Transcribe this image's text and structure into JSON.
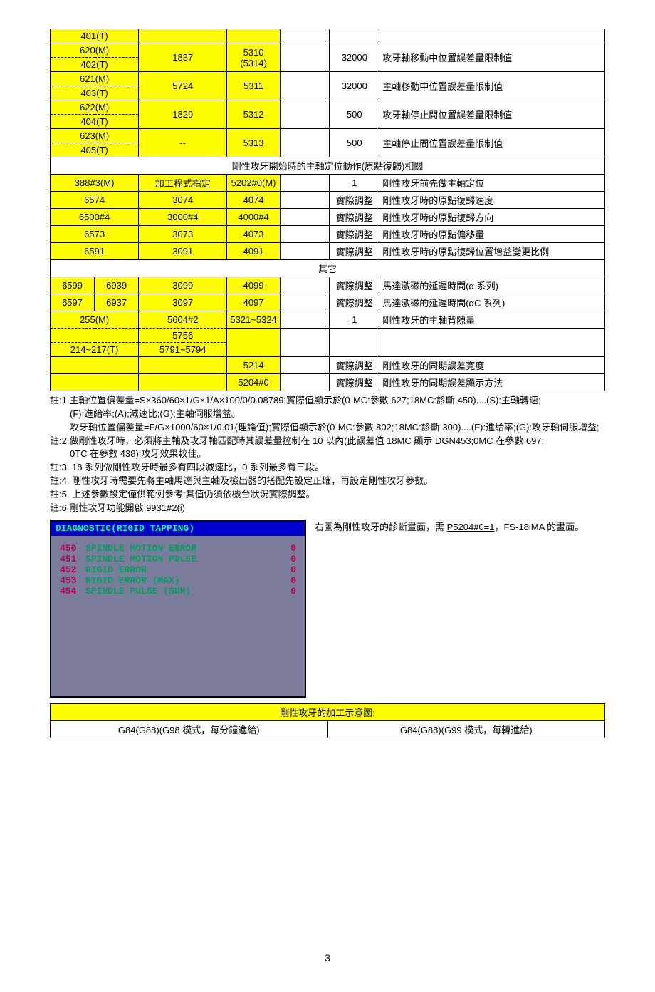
{
  "colors": {
    "highlight": "#ffff00",
    "diag_bg": "#7b7b9c",
    "diag_title_bg": "#0000cc",
    "diag_green": "#00a060",
    "diag_red": "#c00050"
  },
  "typography": {
    "body_fontsize": 13,
    "diag_font": "Courier New"
  },
  "table": {
    "col_widths_pct": [
      8,
      8,
      8,
      8,
      9,
      9,
      9,
      41
    ],
    "group1": [
      {
        "a1": "401(T)",
        "a2_top": "",
        "a2_bot": "",
        "c3": "",
        "c5": "",
        "c6": "",
        "c7": "",
        "desc": ""
      },
      {
        "a1": "620(M)",
        "a2_bot": "402(T)",
        "c3": "1837",
        "c5": "5310\n(5314)",
        "c6": "32000",
        "desc": "攻牙軸移動中位置誤差量限制值"
      },
      {
        "a1": "621(M)",
        "a2_bot": "403(T)",
        "c3": "5724",
        "c5": "5311",
        "c6": "32000",
        "desc": "主軸移動中位置誤差量限制值"
      },
      {
        "a1": "622(M)",
        "a2_bot": "404(T)",
        "c3": "1829",
        "c5": "5312",
        "c6": "500",
        "desc": "攻牙軸停止間位置誤差量限制值"
      },
      {
        "a1": "623(M)",
        "a2_bot": "405(T)",
        "c3": "--",
        "c5": "5313",
        "c6": "500",
        "desc": "主軸停止間位置誤差量限制值"
      }
    ],
    "section2_header": "剛性攻牙開始時的主軸定位動作(原點復歸)相關",
    "section2_rows": [
      {
        "c1": "388#3(M)",
        "c3": "加工程式指定",
        "c5": "5202#0(M)",
        "c6": "1",
        "desc": "剛性攻牙前先做主軸定位"
      },
      {
        "c1": "6574",
        "c3": "3074",
        "c5": "4074",
        "c6": "實際調整",
        "desc": "剛性攻牙時的原點復歸速度"
      },
      {
        "c1": "6500#4",
        "c3": "3000#4",
        "c5": "4000#4",
        "c6": "實際調整",
        "desc": "剛性攻牙時的原點復歸方向"
      },
      {
        "c1": "6573",
        "c3": "3073",
        "c5": "4073",
        "c6": "實際調整",
        "desc": "剛性攻牙時的原點偏移量"
      },
      {
        "c1": "6591",
        "c3": "3091",
        "c5": "4091",
        "c6": "實際調整",
        "desc": "剛性攻牙時的原點復歸位置增益變更比例"
      }
    ],
    "section3_header": "其它",
    "section3_rows": [
      {
        "c1a": "6599",
        "c1b": "6939",
        "c3": "3099",
        "c5": "4099",
        "c6": "實際調整",
        "desc": "馬達激磁的延遲時間(α 系列)"
      },
      {
        "c1a": "6597",
        "c1b": "6937",
        "c3": "3097",
        "c5": "4097",
        "c6": "實際調整",
        "desc": "馬達激磁的延遲時間(αC 系列)"
      },
      {
        "c1": "255(M)",
        "c3a": "5604#2",
        "c3b": "5756",
        "c5": "5321~5324",
        "c6": "1",
        "desc": "剛性攻牙的主軸背隙量"
      },
      {
        "c1": "214~217(T)",
        "c3": "5791~5794",
        "c5": "",
        "c6": "",
        "desc": ""
      },
      {
        "c1": "",
        "c3": "",
        "c5": "5214",
        "c6": "實際調整",
        "desc": "剛性攻牙的同期誤差寬度"
      },
      {
        "c1": "",
        "c3": "",
        "c5": "5204#0",
        "c6": "實際調整",
        "desc": "剛性攻牙的同期誤差顯示方法"
      }
    ]
  },
  "notes": [
    "註:1.主軸位置偏差量=S×360/60×1/G×1/A×100/0/0.08789;實際值顯示於(0-MC:參數 627;18MC:診斷 450)....(S):主軸轉速;",
    "(F);進給率;(A);減速比;(G);主軸伺服增益。",
    "攻牙軸位置偏差量=F/G×1000/60×1/0.01(理論值);實際值顯示於(0-MC:參數 802;18MC:診斷 300)....(F):進給率;(G):攻牙軸伺服增益;",
    "註:2.做剛性攻牙時，必須將主軸及攻牙軸匹配時其誤差量控制在 10 以內(此誤差值 18MC 顯示 DGN453;0MC 在參數 697;",
    "0TC 在參數 438):攻牙效果較佳。",
    "註:3. 18 系列做剛性攻牙時最多有四段減速比，0 系列最多有三段。",
    "註:4.  剛性攻牙時需要先將主軸馬達與主軸及檢出器的搭配先設定正確，再設定剛性攻牙參數。",
    "註:5.  上述參數設定僅供範例參考:其值仍須依機台狀況實際調整。",
    "註:6  剛性攻牙功能開啟 9931#2(i)"
  ],
  "diag": {
    "title": "DIAGNOSTIC(RIGID TAPPING)",
    "rows": [
      {
        "n": "450",
        "lbl": "SPINDLE MOTION ERROR",
        "v": "0"
      },
      {
        "n": "451",
        "lbl": "SPINDLE MOTION PULSE",
        "v": "0"
      },
      {
        "n": "452",
        "lbl": "RIGID ERROR",
        "v": "0"
      },
      {
        "n": "453",
        "lbl": "RIGID ERROR (MAX)",
        "v": "0"
      },
      {
        "n": "454",
        "lbl": "SPINDLE PULSE (SUM)",
        "v": "0"
      }
    ]
  },
  "side_note_pre": "右圖為剛性攻牙的診斷畫面，需 ",
  "side_note_u": "P5204#0=1",
  "side_note_post": "，FS-18iMA 的畫面。",
  "schem_header": "剛性攻牙的加工示意圖:",
  "schem_left": "G84(G88)(G98 模式，每分鐘進給)",
  "schem_right": "G84(G88)(G99 模式，每轉進給)",
  "page_number": "3"
}
